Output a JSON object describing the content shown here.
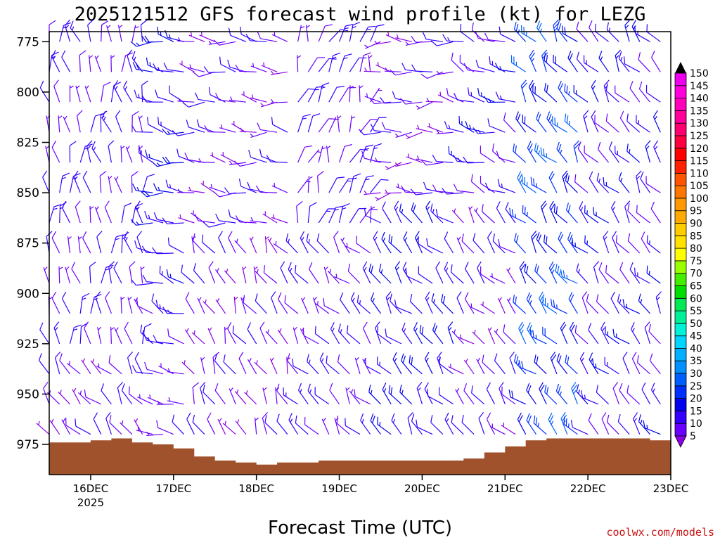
{
  "chart_data": {
    "type": "wind_barb_profile",
    "title": "2025121512 GFS forecast wind profile (kt) for LEZG",
    "xlabel": "Forecast Time (UTC)",
    "ylabel": "",
    "credit": "coolwx.com/models",
    "x_range": [
      "2025-12-15T12:00",
      "2025-12-23T00:00"
    ],
    "x_ticks": [
      {
        "label": "16DEC",
        "sublabel": "2025",
        "time": "2025-12-16T00:00"
      },
      {
        "label": "17DEC",
        "time": "2025-12-17T00:00"
      },
      {
        "label": "18DEC",
        "time": "2025-12-18T00:00"
      },
      {
        "label": "19DEC",
        "time": "2025-12-19T00:00"
      },
      {
        "label": "20DEC",
        "time": "2025-12-20T00:00"
      },
      {
        "label": "21DEC",
        "time": "2025-12-21T00:00"
      },
      {
        "label": "22DEC",
        "time": "2025-12-22T00:00"
      },
      {
        "label": "23DEC",
        "time": "2025-12-23T00:00"
      }
    ],
    "y_range_hpa": [
      770,
      990
    ],
    "y_ticks": [
      "775",
      "800",
      "825",
      "850",
      "875",
      "900",
      "925",
      "950",
      "975"
    ],
    "pressure_levels_hpa": [
      775,
      790,
      805,
      820,
      835,
      850,
      865,
      880,
      895,
      910,
      925,
      940,
      955,
      970,
      985
    ],
    "time_step_hours": 3,
    "colorbar": {
      "labels": [
        "5",
        "10",
        "15",
        "20",
        "25",
        "30",
        "35",
        "40",
        "45",
        "50",
        "55",
        "60",
        "65",
        "70",
        "75",
        "80",
        "85",
        "90",
        "95",
        "100",
        "105",
        "110",
        "115",
        "120",
        "125",
        "130",
        "135",
        "140",
        "145",
        "150"
      ],
      "colors": [
        "#8a00e6",
        "#6a00ff",
        "#3300ff",
        "#0000ee",
        "#0030ff",
        "#0060ff",
        "#0090ff",
        "#00b0ff",
        "#00d5ff",
        "#00f0d8",
        "#00f09a",
        "#00ea55",
        "#00e000",
        "#44ee00",
        "#99ff00",
        "#ffff00",
        "#ffe200",
        "#ffcc00",
        "#ffaa00",
        "#ff9900",
        "#ff7700",
        "#ff5500",
        "#ff2200",
        "#ff0000",
        "#ff0040",
        "#ff0070",
        "#ff0099",
        "#ff00bb",
        "#ff00dd",
        "#ee00ee"
      ],
      "colors_speed_kt": [
        5,
        10,
        15,
        20,
        25,
        30,
        35,
        40,
        45,
        50,
        55,
        60,
        65,
        70,
        75,
        80,
        85,
        90,
        95,
        100,
        105,
        110,
        115,
        120,
        125,
        130,
        135,
        140,
        145,
        150
      ]
    },
    "terrain": {
      "color": "#a0522d",
      "surface_pressure_hpa": [
        {
          "time": "2025-12-15T12:00",
          "p": 974
        },
        {
          "time": "2025-12-16T00:00",
          "p": 973
        },
        {
          "time": "2025-12-16T06:00",
          "p": 972
        },
        {
          "time": "2025-12-16T12:00",
          "p": 974
        },
        {
          "time": "2025-12-16T18:00",
          "p": 975
        },
        {
          "time": "2025-12-17T00:00",
          "p": 977
        },
        {
          "time": "2025-12-17T06:00",
          "p": 981
        },
        {
          "time": "2025-12-17T12:00",
          "p": 983
        },
        {
          "time": "2025-12-17T18:00",
          "p": 984
        },
        {
          "time": "2025-12-18T00:00",
          "p": 985
        },
        {
          "time": "2025-12-18T06:00",
          "p": 984
        },
        {
          "time": "2025-12-18T12:00",
          "p": 984
        },
        {
          "time": "2025-12-18T18:00",
          "p": 983
        },
        {
          "time": "2025-12-19T00:00",
          "p": 983
        },
        {
          "time": "2025-12-19T12:00",
          "p": 983
        },
        {
          "time": "2025-12-20T00:00",
          "p": 983
        },
        {
          "time": "2025-12-20T06:00",
          "p": 983
        },
        {
          "time": "2025-12-20T12:00",
          "p": 982
        },
        {
          "time": "2025-12-20T18:00",
          "p": 979
        },
        {
          "time": "2025-12-21T00:00",
          "p": 976
        },
        {
          "time": "2025-12-21T06:00",
          "p": 973
        },
        {
          "time": "2025-12-21T12:00",
          "p": 972
        },
        {
          "time": "2025-12-21T18:00",
          "p": 972
        },
        {
          "time": "2025-12-22T00:00",
          "p": 972
        },
        {
          "time": "2025-12-22T12:00",
          "p": 972
        },
        {
          "time": "2025-12-22T18:00",
          "p": 973
        },
        {
          "time": "2025-12-23T00:00",
          "p": 973
        }
      ]
    },
    "wind_regimes": [
      {
        "from": "2025-12-15T12:00",
        "to": "2025-12-16T18:00",
        "p_top": 770,
        "p_bottom": 930,
        "dir": 350,
        "spd": 10
      },
      {
        "from": "2025-12-15T12:00",
        "to": "2025-12-16T18:00",
        "p_top": 930,
        "p_bottom": 990,
        "dir": 320,
        "spd": 8
      },
      {
        "from": "2025-12-16T18:00",
        "to": "2025-12-17T06:00",
        "p_top": 770,
        "p_bottom": 900,
        "dir": 280,
        "spd": 14
      },
      {
        "from": "2025-12-16T18:00",
        "to": "2025-12-17T06:00",
        "p_top": 900,
        "p_bottom": 990,
        "dir": 290,
        "spd": 9
      },
      {
        "from": "2025-12-17T06:00",
        "to": "2025-12-18T12:00",
        "p_top": 770,
        "p_bottom": 870,
        "dir": 280,
        "spd": 8
      },
      {
        "from": "2025-12-17T06:00",
        "to": "2025-12-18T12:00",
        "p_top": 870,
        "p_bottom": 990,
        "dir": 330,
        "spd": 7
      },
      {
        "from": "2025-12-18T12:00",
        "to": "2025-12-19T12:00",
        "p_top": 770,
        "p_bottom": 880,
        "dir": 20,
        "spd": 10
      },
      {
        "from": "2025-12-18T12:00",
        "to": "2025-12-19T12:00",
        "p_top": 880,
        "p_bottom": 990,
        "dir": 320,
        "spd": 10
      },
      {
        "from": "2025-12-19T12:00",
        "to": "2025-12-20T12:00",
        "p_top": 770,
        "p_bottom": 860,
        "dir": 270,
        "spd": 7
      },
      {
        "from": "2025-12-19T12:00",
        "to": "2025-12-20T12:00",
        "p_top": 860,
        "p_bottom": 990,
        "dir": 320,
        "spd": 14
      },
      {
        "from": "2025-12-20T12:00",
        "to": "2025-12-21T06:00",
        "p_top": 770,
        "p_bottom": 860,
        "dir": 290,
        "spd": 12
      },
      {
        "from": "2025-12-20T12:00",
        "to": "2025-12-21T06:00",
        "p_top": 860,
        "p_bottom": 990,
        "dir": 320,
        "spd": 8
      },
      {
        "from": "2025-12-21T06:00",
        "to": "2025-12-22T00:00",
        "p_top": 770,
        "p_bottom": 990,
        "dir": 320,
        "spd": 22
      },
      {
        "from": "2025-12-22T00:00",
        "to": "2025-12-23T00:00",
        "p_top": 770,
        "p_bottom": 990,
        "dir": 320,
        "spd": 12
      }
    ]
  }
}
